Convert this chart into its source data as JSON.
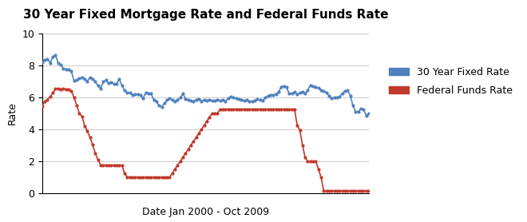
{
  "title": "30 Year Fixed Mortgage Rate and Federal Funds Rate",
  "xlabel": "Date Jan 2000 - Oct 2009",
  "ylabel": "Rate",
  "ylim": [
    0,
    10
  ],
  "yticks": [
    0,
    2,
    4,
    6,
    8,
    10
  ],
  "legend_labels": [
    "30 Year Fixed Rate",
    "Federal Funds Rate"
  ],
  "mortgage_color": "#4f81bd",
  "fed_color": "#c0392b",
  "background_color": "#FFFFFF",
  "mortgage_data": [
    8.21,
    8.36,
    8.37,
    8.16,
    8.52,
    8.64,
    8.15,
    8.03,
    7.79,
    7.76,
    7.74,
    7.62,
    7.03,
    7.07,
    7.18,
    7.26,
    7.15,
    6.98,
    7.24,
    7.16,
    6.97,
    6.72,
    6.55,
    6.97,
    7.07,
    6.87,
    6.93,
    6.84,
    6.84,
    7.14,
    6.74,
    6.43,
    6.29,
    6.27,
    6.14,
    6.2,
    6.18,
    6.13,
    5.92,
    6.3,
    6.22,
    6.23,
    5.83,
    5.72,
    5.48,
    5.37,
    5.62,
    5.82,
    5.94,
    5.83,
    5.74,
    5.84,
    5.97,
    6.22,
    5.89,
    5.85,
    5.77,
    5.75,
    5.85,
    5.88,
    5.76,
    5.85,
    5.79,
    5.85,
    5.79,
    5.79,
    5.83,
    5.8,
    5.82,
    5.75,
    5.94,
    6.02,
    5.98,
    5.93,
    5.87,
    5.85,
    5.79,
    5.82,
    5.76,
    5.74,
    5.81,
    5.87,
    5.82,
    5.79,
    5.97,
    6.08,
    6.16,
    6.13,
    6.21,
    6.32,
    6.65,
    6.71,
    6.62,
    6.22,
    6.23,
    6.32,
    6.18,
    6.27,
    6.32,
    6.23,
    6.45,
    6.76,
    6.71,
    6.63,
    6.58,
    6.46,
    6.38,
    6.3,
    6.09,
    5.94,
    5.98,
    5.99,
    6.04,
    6.26,
    6.37,
    6.45,
    6.09,
    5.47,
    5.1,
    5.09,
    5.29,
    5.25,
    4.85,
    5.01
  ],
  "fed_data": [
    5.45,
    5.73,
    5.85,
    6.02,
    6.27,
    6.54,
    6.54,
    6.5,
    6.52,
    6.51,
    6.51,
    6.4,
    5.98,
    5.49,
    5.0,
    4.8,
    4.21,
    3.89,
    3.5,
    3.02,
    2.5,
    2.09,
    1.75,
    1.76,
    1.74,
    1.74,
    1.75,
    1.75,
    1.75,
    1.75,
    1.75,
    1.24,
    1.01,
    1.01,
    1.0,
    1.0,
    1.0,
    1.0,
    1.0,
    1.0,
    1.0,
    1.0,
    1.0,
    1.0,
    1.0,
    1.0,
    1.0,
    1.0,
    1.0,
    1.25,
    1.5,
    1.75,
    2.0,
    2.25,
    2.5,
    2.75,
    3.0,
    3.25,
    3.5,
    3.75,
    4.0,
    4.25,
    4.5,
    4.75,
    5.0,
    5.0,
    5.0,
    5.25,
    5.25,
    5.25,
    5.25,
    5.25,
    5.25,
    5.25,
    5.25,
    5.25,
    5.25,
    5.25,
    5.25,
    5.25,
    5.25,
    5.25,
    5.25,
    5.25,
    5.25,
    5.25,
    5.25,
    5.25,
    5.25,
    5.25,
    5.25,
    5.25,
    5.25,
    5.25,
    5.25,
    5.25,
    4.24,
    3.94,
    3.0,
    2.22,
    1.98,
    2.0,
    2.0,
    2.0,
    1.5,
    1.0,
    0.12,
    0.13,
    0.13,
    0.13,
    0.13,
    0.13,
    0.13,
    0.13,
    0.13,
    0.13,
    0.13,
    0.13,
    0.13,
    0.13,
    0.12,
    0.12,
    0.12,
    0.12
  ],
  "marker_size": 2.0,
  "line_width": 1.2,
  "title_fontsize": 11,
  "label_fontsize": 9,
  "tick_fontsize": 9,
  "legend_fontsize": 9
}
